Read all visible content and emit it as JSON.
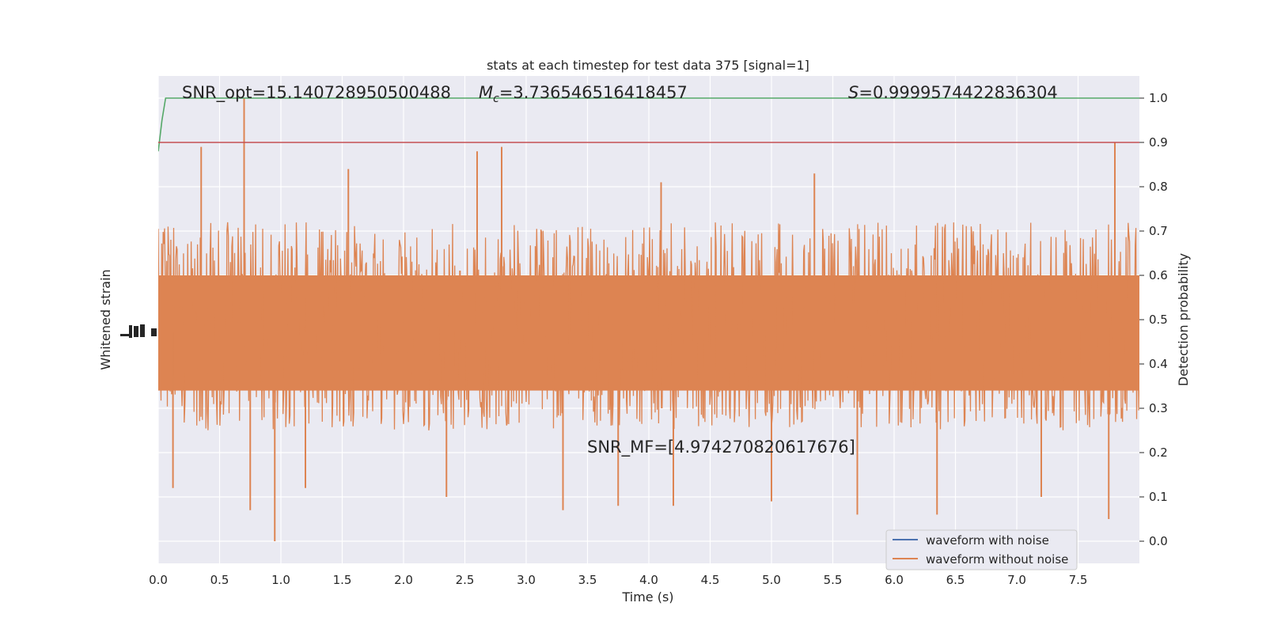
{
  "chart_data": {
    "type": "line",
    "title": "stats at each timestep for test data 375 [signal=1]",
    "xlabel": "Time (s)",
    "ylabel_left": "Whitened strain",
    "ylabel_right": "Detection probability",
    "xlim": [
      0.0,
      8.0
    ],
    "ylim_right": [
      -0.05,
      1.05
    ],
    "x_ticks": [
      "0.0",
      "0.5",
      "1.0",
      "1.5",
      "2.0",
      "2.5",
      "3.0",
      "3.5",
      "4.0",
      "4.5",
      "5.0",
      "5.5",
      "6.0",
      "6.5",
      "7.0",
      "7.5"
    ],
    "y_ticks_right": [
      "0.0",
      "0.1",
      "0.2",
      "0.3",
      "0.4",
      "0.5",
      "0.6",
      "0.7",
      "0.8",
      "0.9",
      "1.0"
    ],
    "grid": true,
    "background": "#eaeaf2",
    "annotations": {
      "snr_opt": "SNR_opt=15.140728950500488",
      "mc_symbol": "M",
      "mc_subscript": "c",
      "mc_value": "=3.736546516418457",
      "s_symbol": "S",
      "s_value": "=0.9999574422836304",
      "snr_mf": "SNR_MF=[4.974270820617676]"
    },
    "legend": {
      "placement": "lower-right",
      "entries": [
        {
          "label": "waveform with noise",
          "color": "#4c72b0"
        },
        {
          "label": "waveform without noise",
          "color": "#dd8452"
        }
      ]
    },
    "series": [
      {
        "name": "waveform without noise",
        "color": "#dd8452",
        "axis": "right",
        "description_values": {
          "center": 0.47,
          "core_halfwidth": 0.13,
          "typical_peak_high": 0.72,
          "typical_peak_low": 0.25
        },
        "peaks_high": [
          [
            0.35,
            0.89
          ],
          [
            0.7,
            1.0
          ],
          [
            1.55,
            0.84
          ],
          [
            2.6,
            0.88
          ],
          [
            2.8,
            0.89
          ],
          [
            4.1,
            0.81
          ],
          [
            5.35,
            0.83
          ],
          [
            7.8,
            0.9
          ]
        ],
        "peaks_low": [
          [
            0.12,
            0.12
          ],
          [
            0.75,
            0.07
          ],
          [
            0.95,
            0.0
          ],
          [
            1.2,
            0.12
          ],
          [
            2.35,
            0.1
          ],
          [
            3.3,
            0.07
          ],
          [
            3.75,
            0.08
          ],
          [
            4.2,
            0.08
          ],
          [
            5.0,
            0.09
          ],
          [
            5.7,
            0.06
          ],
          [
            6.35,
            0.06
          ],
          [
            7.2,
            0.1
          ],
          [
            7.75,
            0.05
          ]
        ]
      },
      {
        "name": "",
        "color": "#55a868",
        "axis": "right",
        "x": [
          0.0,
          0.03,
          0.06,
          8.0
        ],
        "y": [
          0.88,
          0.95,
          1.0,
          1.0
        ]
      },
      {
        "name": "",
        "color": "#c44e52",
        "axis": "right",
        "x": [
          0.0,
          8.0
        ],
        "y": [
          0.9,
          0.9
        ]
      }
    ]
  }
}
